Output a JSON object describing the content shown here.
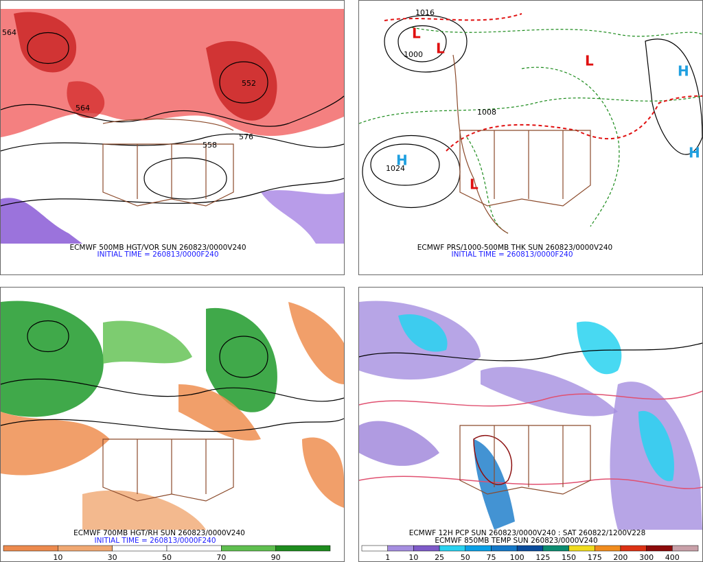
{
  "panels": [
    {
      "caption": "ECMWF 500MB HGT/VOR SUN 260823/0000V240",
      "subcaption": "INITIAL TIME = 260813/0000F240",
      "labels": [
        "564",
        "552",
        "564",
        "558",
        "576"
      ]
    },
    {
      "caption": "ECMWF PRS/1000-500MB THK SUN 260823/0000V240",
      "subcaption": "INITIAL TIME = 260813/0000F240",
      "labels": [
        "L",
        "L",
        "L",
        "L",
        "H",
        "H",
        "H",
        "1024",
        "1016",
        "1008",
        "1000"
      ]
    },
    {
      "caption": "ECMWF 700MB HGT/RH SUN 260823/0000V240",
      "subcaption": "INITIAL TIME = 260813/0000F240",
      "colorbar": {
        "ticks": [
          10,
          30,
          50,
          70,
          90
        ],
        "colors": [
          "#ec8a4e",
          "#f0a872",
          "#ffffff",
          "#ffffff",
          "#5fbf4f",
          "#1e8c1e"
        ]
      }
    },
    {
      "caption": "ECMWF 12H PCP SUN 260823/0000V240 : SAT 260822/1200V228",
      "subcaption": "ECMWF 850MB TEMP SUN 260823/0000V240",
      "colorbar": {
        "ticks": [
          1,
          10,
          25,
          50,
          75,
          100,
          125,
          150,
          175,
          200,
          300,
          400
        ],
        "colors": [
          "#ffffff",
          "#a58ee0",
          "#7e5ac8",
          "#28d2f0",
          "#0aa0e6",
          "#1478c8",
          "#0a4c9c",
          "#0c8c70",
          "#f0dc1e",
          "#f08c1e",
          "#dc3214",
          "#8c0a0a",
          "#c8a0a8"
        ]
      }
    }
  ]
}
